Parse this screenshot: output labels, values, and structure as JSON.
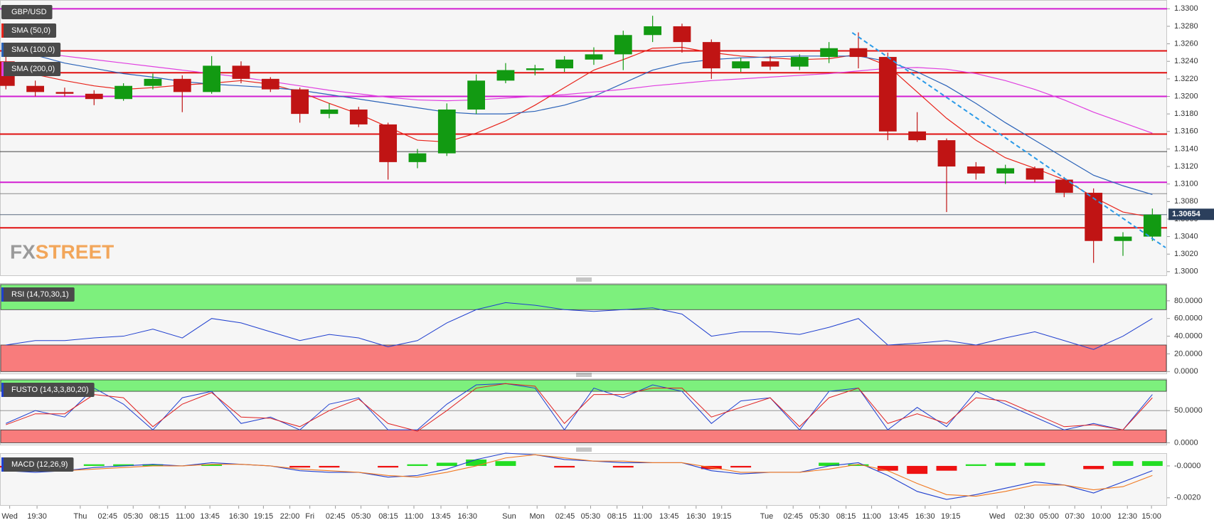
{
  "chart_data": [
    {
      "type": "candlestick",
      "title": "GBP/USD",
      "x": [
        0,
        1,
        2,
        3,
        4,
        5,
        6,
        7,
        8,
        9,
        10,
        11,
        12,
        13,
        14,
        15,
        16,
        17,
        18,
        19,
        20,
        21,
        22,
        23,
        24,
        25,
        26,
        27,
        28,
        29,
        30,
        31,
        32,
        33,
        34,
        35,
        36,
        37,
        38,
        39
      ],
      "xlim": [
        -0.2,
        39.5
      ],
      "xticks": [
        {
          "value": 0.13,
          "label": "Wed"
        },
        {
          "value": 1.06,
          "label": "19:30"
        },
        {
          "value": 2.53,
          "label": "Thu"
        },
        {
          "value": 3.46,
          "label": "02:45"
        },
        {
          "value": 4.33,
          "label": "05:30"
        },
        {
          "value": 5.22,
          "label": "08:15"
        },
        {
          "value": 6.1,
          "label": "11:00"
        },
        {
          "value": 6.94,
          "label": "13:45"
        },
        {
          "value": 7.92,
          "label": "16:30"
        },
        {
          "value": 8.76,
          "label": "19:15"
        },
        {
          "value": 9.66,
          "label": "22:00"
        },
        {
          "value": 10.34,
          "label": "Fri"
        },
        {
          "value": 11.21,
          "label": "02:45"
        },
        {
          "value": 12.08,
          "label": "05:30"
        },
        {
          "value": 13.01,
          "label": "08:15"
        },
        {
          "value": 13.88,
          "label": "11:00"
        },
        {
          "value": 14.8,
          "label": "13:45"
        },
        {
          "value": 15.7,
          "label": "16:30"
        },
        {
          "value": 17.12,
          "label": "Sun"
        },
        {
          "value": 18.07,
          "label": "Mon"
        },
        {
          "value": 19.02,
          "label": "02:45"
        },
        {
          "value": 19.89,
          "label": "05:30"
        },
        {
          "value": 20.79,
          "label": "08:15"
        },
        {
          "value": 21.66,
          "label": "11:00"
        },
        {
          "value": 22.56,
          "label": "13:45"
        },
        {
          "value": 23.48,
          "label": "16:30"
        },
        {
          "value": 24.35,
          "label": "19:15"
        },
        {
          "value": 25.88,
          "label": "Tue"
        },
        {
          "value": 26.78,
          "label": "02:45"
        },
        {
          "value": 27.68,
          "label": "05:30"
        },
        {
          "value": 28.58,
          "label": "08:15"
        },
        {
          "value": 29.45,
          "label": "11:00"
        },
        {
          "value": 30.37,
          "label": "13:45"
        },
        {
          "value": 31.27,
          "label": "16:30"
        },
        {
          "value": 32.14,
          "label": "19:15"
        },
        {
          "value": 33.72,
          "label": "Wed"
        },
        {
          "value": 34.65,
          "label": "02:30"
        },
        {
          "value": 35.49,
          "label": "05:00"
        },
        {
          "value": 36.36,
          "label": "07:30"
        },
        {
          "value": 37.26,
          "label": "10:00"
        },
        {
          "value": 38.15,
          "label": "12:30"
        },
        {
          "value": 38.97,
          "label": "15:00"
        }
      ],
      "ylim": [
        1.2995,
        1.331
      ],
      "yticks": [
        {
          "value": 1.3,
          "label": "1.3000"
        },
        {
          "value": 1.302,
          "label": "1.3020"
        },
        {
          "value": 1.304,
          "label": "1.3040"
        },
        {
          "value": 1.306,
          "label": "1.3060"
        },
        {
          "value": 1.308,
          "label": "1.3080"
        },
        {
          "value": 1.31,
          "label": "1.3100"
        },
        {
          "value": 1.312,
          "label": "1.3120"
        },
        {
          "value": 1.314,
          "label": "1.3140"
        },
        {
          "value": 1.316,
          "label": "1.3160"
        },
        {
          "value": 1.318,
          "label": "1.3180"
        },
        {
          "value": 1.32,
          "label": "1.3200"
        },
        {
          "value": 1.322,
          "label": "1.3220"
        },
        {
          "value": 1.324,
          "label": "1.3240"
        },
        {
          "value": 1.326,
          "label": "1.3260"
        },
        {
          "value": 1.328,
          "label": "1.3280"
        },
        {
          "value": 1.33,
          "label": "1.3300"
        }
      ],
      "up_color": "#129a12",
      "down_color": "#c01414",
      "open": [
        1.324,
        1.3212,
        1.3205,
        1.3203,
        1.3197,
        1.3212,
        1.322,
        1.3205,
        1.3235,
        1.322,
        1.3208,
        1.318,
        1.3185,
        1.3168,
        1.3125,
        1.3135,
        1.3185,
        1.3218,
        1.323,
        1.3232,
        1.3242,
        1.3248,
        1.327,
        1.328,
        1.3262,
        1.3232,
        1.324,
        1.3234,
        1.3245,
        1.3255,
        1.3245,
        1.316,
        1.315,
        1.312,
        1.3112,
        1.3118,
        1.3105,
        1.309,
        1.3035,
        1.304
      ],
      "high": [
        1.325,
        1.3218,
        1.321,
        1.3207,
        1.3215,
        1.3226,
        1.3224,
        1.3246,
        1.324,
        1.3222,
        1.321,
        1.3192,
        1.3188,
        1.317,
        1.314,
        1.3192,
        1.3225,
        1.3238,
        1.3236,
        1.3246,
        1.3256,
        1.3275,
        1.3292,
        1.3283,
        1.3265,
        1.3244,
        1.3246,
        1.3248,
        1.3262,
        1.3273,
        1.325,
        1.3182,
        1.3152,
        1.3125,
        1.3122,
        1.312,
        1.3108,
        1.3095,
        1.3045,
        1.3072
      ],
      "low": [
        1.3208,
        1.32,
        1.32,
        1.319,
        1.3195,
        1.3208,
        1.3182,
        1.3203,
        1.3215,
        1.3205,
        1.317,
        1.3175,
        1.3165,
        1.3105,
        1.3118,
        1.3132,
        1.318,
        1.3215,
        1.3224,
        1.3228,
        1.3236,
        1.323,
        1.3262,
        1.325,
        1.322,
        1.3228,
        1.323,
        1.323,
        1.3238,
        1.3232,
        1.315,
        1.3148,
        1.3068,
        1.3105,
        1.31,
        1.3102,
        1.3085,
        1.301,
        1.3018,
        1.3035
      ],
      "close": [
        1.3212,
        1.3205,
        1.3203,
        1.3197,
        1.3212,
        1.322,
        1.3205,
        1.3235,
        1.322,
        1.3208,
        1.318,
        1.3185,
        1.3168,
        1.3125,
        1.3135,
        1.3185,
        1.3218,
        1.323,
        1.3232,
        1.3242,
        1.3248,
        1.327,
        1.328,
        1.3262,
        1.3232,
        1.324,
        1.3234,
        1.3245,
        1.3255,
        1.3245,
        1.316,
        1.315,
        1.312,
        1.3112,
        1.3118,
        1.3105,
        1.309,
        1.3035,
        1.304,
        1.3065
      ],
      "series": [
        {
          "name": "SMA (50,0)",
          "color": "#e8231a",
          "values": [
            1.3232,
            1.3225,
            1.3218,
            1.3212,
            1.3208,
            1.321,
            1.3213,
            1.3215,
            1.3218,
            1.3214,
            1.3205,
            1.3192,
            1.318,
            1.3165,
            1.315,
            1.3148,
            1.3158,
            1.3172,
            1.319,
            1.321,
            1.323,
            1.3242,
            1.3255,
            1.3256,
            1.325,
            1.3246,
            1.3244,
            1.3242,
            1.3243,
            1.3248,
            1.3235,
            1.3205,
            1.3175,
            1.315,
            1.313,
            1.3118,
            1.3105,
            1.3085,
            1.3068,
            1.3062
          ]
        },
        {
          "name": "SMA (100,0)",
          "color": "#2a62b8",
          "values": [
            1.3255,
            1.3247,
            1.3238,
            1.3232,
            1.3226,
            1.3222,
            1.3217,
            1.3214,
            1.3212,
            1.321,
            1.3207,
            1.3202,
            1.3197,
            1.3192,
            1.3187,
            1.3182,
            1.318,
            1.318,
            1.3183,
            1.319,
            1.32,
            1.3215,
            1.323,
            1.3238,
            1.3242,
            1.3244,
            1.3245,
            1.3246,
            1.3246,
            1.3246,
            1.324,
            1.3228,
            1.3212,
            1.3192,
            1.317,
            1.315,
            1.313,
            1.311,
            1.3098,
            1.3088
          ]
        },
        {
          "name": "SMA (200,0)",
          "color": "#e040e0",
          "values": [
            1.3252,
            1.325,
            1.3246,
            1.3242,
            1.3238,
            1.3234,
            1.323,
            1.3226,
            1.3222,
            1.3217,
            1.3212,
            1.3207,
            1.3203,
            1.3199,
            1.3196,
            1.3195,
            1.3196,
            1.3198,
            1.32,
            1.3202,
            1.3205,
            1.3208,
            1.3212,
            1.3215,
            1.3218,
            1.322,
            1.3222,
            1.3224,
            1.3226,
            1.3229,
            1.3232,
            1.3233,
            1.3231,
            1.3226,
            1.3218,
            1.3208,
            1.3196,
            1.3182,
            1.317,
            1.3158
          ]
        }
      ],
      "levels": [
        {
          "value": 1.33,
          "color": "#d21fd2"
        },
        {
          "value": 1.3252,
          "color": "#e01010"
        },
        {
          "value": 1.3227,
          "color": "#e01010"
        },
        {
          "value": 1.32,
          "color": "#d21fd2"
        },
        {
          "value": 1.3157,
          "color": "#e01010"
        },
        {
          "value": 1.3137,
          "color": "#444444"
        },
        {
          "value": 1.3102,
          "color": "#d21fd2"
        },
        {
          "value": 1.3089,
          "color": "#8a8a8a"
        },
        {
          "value": 1.3065,
          "color": "#5a6a80"
        },
        {
          "value": 1.305,
          "color": "#e01010"
        }
      ],
      "trendline": {
        "x": [
          28.79,
          39.45
        ],
        "values": [
          1.32727,
          1.30274
        ],
        "color": "#2a9ae8"
      },
      "current_price": 1.30654,
      "watermark": [
        "FX",
        "STREET"
      ]
    },
    {
      "type": "line",
      "title": "RSI (14,70,30,1)",
      "ylim": [
        -3,
        100
      ],
      "yticks": [
        {
          "value": 0,
          "label": "0.0000"
        },
        {
          "value": 20,
          "label": "20.0000"
        },
        {
          "value": 40,
          "label": "40.0000"
        },
        {
          "value": 60,
          "label": "60.0000"
        },
        {
          "value": 80,
          "label": "80.0000"
        }
      ],
      "overbought": 70,
      "oversold": 30,
      "series": [
        {
          "color": "#1f3fcf",
          "values": [
            30,
            35,
            35,
            38,
            40,
            48,
            38,
            60,
            55,
            45,
            35,
            42,
            38,
            28,
            35,
            55,
            70,
            78,
            75,
            70,
            68,
            70,
            72,
            65,
            40,
            45,
            45,
            42,
            50,
            60,
            30,
            32,
            35,
            30,
            38,
            45,
            35,
            25,
            40,
            60
          ]
        }
      ]
    },
    {
      "type": "line",
      "title": "FUSTO (14,3,3,80,20)",
      "ylim": [
        -4,
        100
      ],
      "yticks": [
        {
          "value": 0,
          "label": "0.0000"
        },
        {
          "value": 50,
          "label": "50.0000"
        }
      ],
      "overbought": 80,
      "oversold": 20,
      "midline": 50,
      "series": [
        {
          "color": "#2040d0",
          "values": [
            30,
            50,
            40,
            85,
            60,
            20,
            70,
            80,
            30,
            40,
            20,
            60,
            70,
            20,
            20,
            60,
            90,
            92,
            85,
            20,
            85,
            70,
            90,
            80,
            30,
            65,
            70,
            20,
            80,
            85,
            20,
            55,
            25,
            80,
            60,
            40,
            20,
            30,
            20,
            75
          ]
        },
        {
          "color": "#e02020",
          "values": [
            28,
            45,
            45,
            75,
            70,
            25,
            60,
            78,
            40,
            38,
            25,
            50,
            68,
            30,
            18,
            50,
            85,
            92,
            88,
            30,
            75,
            75,
            85,
            85,
            40,
            55,
            70,
            25,
            70,
            85,
            30,
            45,
            30,
            70,
            65,
            45,
            25,
            28,
            20,
            70
          ]
        }
      ]
    },
    {
      "type": "combo",
      "title": "MACD (12,26,9)",
      "ylim": [
        -0.0025,
        0.0008
      ],
      "yticks": [
        {
          "value": -0.002,
          "label": "-0.0020"
        },
        {
          "value": 0,
          "label": "-0.0000"
        }
      ],
      "series": [
        {
          "kind": "histogram",
          "up_color": "#22dd22",
          "down_color": "#ee1111",
          "values": [
            -0.0001,
            -0.0001,
            0,
            0.0001,
            0.0001,
            0.0001,
            0,
            0.0001,
            0,
            0,
            -0.0001,
            -0.0001,
            0,
            -0.0001,
            0.0001,
            0.0002,
            0.0004,
            0.0003,
            0,
            -0.0001,
            0,
            -0.0001,
            0,
            0,
            -0.0002,
            -0.0001,
            0,
            0,
            0.0002,
            0.0001,
            -0.0003,
            -0.0005,
            -0.0003,
            0.0001,
            0.0002,
            0.0002,
            0,
            -0.0002,
            0.0003,
            0.0003
          ]
        },
        {
          "kind": "line",
          "color": "#1f3fcf",
          "values": [
            -0.0003,
            -0.0004,
            -0.0003,
            -0.0001,
            0,
            0.0001,
            0,
            0.0002,
            0.0001,
            0,
            -0.0003,
            -0.0004,
            -0.0004,
            -0.0007,
            -0.0006,
            -0.0002,
            0.0004,
            0.0008,
            0.0007,
            0.0004,
            0.0003,
            0.0002,
            0.0002,
            0.0002,
            -0.0003,
            -0.0005,
            -0.0004,
            -0.0004,
            0,
            0.0002,
            -0.0006,
            -0.0016,
            -0.0021,
            -0.0018,
            -0.0014,
            -0.001,
            -0.0012,
            -0.0017,
            -0.001,
            -0.0003
          ]
        },
        {
          "kind": "line",
          "color": "#f07820",
          "values": [
            -0.0002,
            -0.0003,
            -0.0003,
            -0.0002,
            -0.0001,
            0,
            0,
            0.0001,
            0.0001,
            0,
            -0.0002,
            -0.0003,
            -0.0004,
            -0.0006,
            -0.0007,
            -0.0004,
            0,
            0.0005,
            0.0007,
            0.0005,
            0.0003,
            0.0003,
            0.0002,
            0.0002,
            -0.0001,
            -0.0004,
            -0.0004,
            -0.0004,
            -0.0002,
            0.0001,
            -0.0003,
            -0.0011,
            -0.0018,
            -0.0019,
            -0.0016,
            -0.0012,
            -0.0012,
            -0.0015,
            -0.0013,
            -0.0006
          ]
        }
      ]
    }
  ]
}
